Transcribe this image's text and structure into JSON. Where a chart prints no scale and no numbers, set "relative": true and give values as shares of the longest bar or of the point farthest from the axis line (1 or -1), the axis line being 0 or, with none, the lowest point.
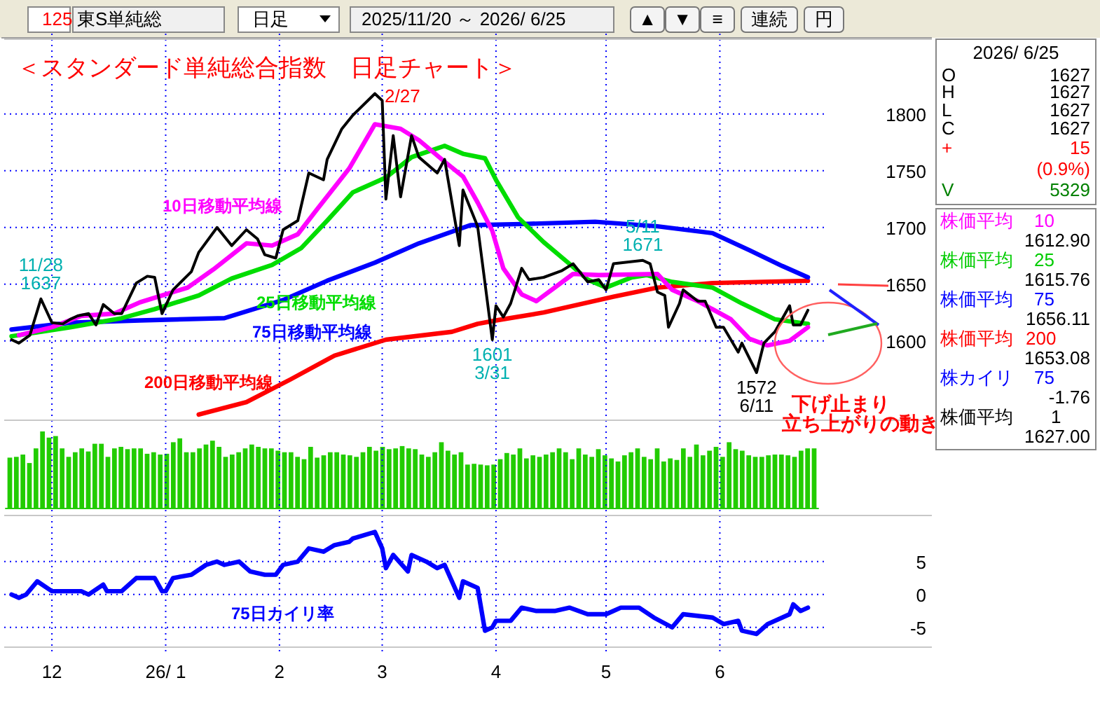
{
  "chart_data": [
    {
      "type": "line",
      "title": "＜スタンダード単純総合指数　日足チャート＞",
      "xlim": [
        "2025-11-18",
        "2026-07-28"
      ],
      "xticks": [
        "2025-12-01",
        "2026-01-01",
        "2026-02-01",
        "2026-03-01",
        "2026-04-01",
        "2026-05-01",
        "2026-06-01"
      ],
      "ylim": [
        1530,
        1866
      ],
      "yticks": [
        1600,
        1650,
        1700,
        1750,
        1800
      ],
      "grid": true,
      "tick_labels": "y",
      "series": [
        {
          "color": "#000000",
          "x": [
            "2025-11-20",
            "2025-11-22",
            "2025-11-25",
            "2025-11-28",
            "2025-12-01",
            "2025-12-04",
            "2025-12-06",
            "2025-12-08",
            "2025-12-11",
            "2025-12-13",
            "2025-12-15",
            "2025-12-18",
            "2025-12-20",
            "2025-12-24",
            "2025-12-27",
            "2025-12-29",
            "2025-12-31",
            "2026-01-03",
            "2026-01-08",
            "2026-01-10",
            "2026-01-15",
            "2026-01-19",
            "2026-01-23",
            "2026-01-26",
            "2026-01-28",
            "2026-01-31",
            "2026-02-02",
            "2026-02-06",
            "2026-02-09",
            "2026-02-13",
            "2026-02-14",
            "2026-02-18",
            "2026-02-21",
            "2026-02-27",
            "2026-03-01",
            "2026-03-02",
            "2026-03-04",
            "2026-03-06",
            "2026-03-09",
            "2026-03-11",
            "2026-03-16",
            "2026-03-18",
            "2026-03-22",
            "2026-03-23",
            "2026-03-27",
            "2026-03-31",
            "2026-04-01",
            "2026-04-03",
            "2026-04-05",
            "2026-04-08",
            "2026-04-10",
            "2026-04-14",
            "2026-04-19",
            "2026-04-22",
            "2026-04-26",
            "2026-04-29",
            "2026-05-01",
            "2026-05-03",
            "2026-05-11",
            "2026-05-13",
            "2026-05-15",
            "2026-05-17",
            "2026-05-18",
            "2026-05-21",
            "2026-05-22",
            "2026-05-26",
            "2026-05-28",
            "2026-05-31",
            "2026-06-02",
            "2026-06-06",
            "2026-06-07",
            "2026-06-11",
            "2026-06-13",
            "2026-06-16",
            "2026-06-20",
            "2026-06-21",
            "2026-06-23",
            "2026-06-25"
          ],
          "values": [
            1601,
            1598,
            1605,
            1637,
            1616,
            1615,
            1619,
            1622,
            1624,
            1614,
            1632,
            1624,
            1624,
            1651,
            1657,
            1656,
            1624,
            1645,
            1661,
            1678,
            1700,
            1684,
            1698,
            1690,
            1676,
            1673,
            1698,
            1706,
            1748,
            1742,
            1760,
            1787,
            1799,
            1818,
            1812,
            1725,
            1781,
            1727,
            1781,
            1762,
            1748,
            1760,
            1684,
            1733,
            1701,
            1601,
            1631,
            1621,
            1633,
            1664,
            1654,
            1656,
            1662,
            1668,
            1652,
            1654,
            1645,
            1668,
            1671,
            1668,
            1643,
            1640,
            1612,
            1633,
            1645,
            1635,
            1635,
            1612,
            1612,
            1590,
            1598,
            1572,
            1598,
            1608,
            1631,
            1614,
            1614,
            1627
          ]
        },
        {
          "name": "10日移動平均線",
          "color": "#ff00ff",
          "x": [
            "2025-11-22",
            "2025-12-01",
            "2025-12-09",
            "2025-12-18",
            "2025-12-25",
            "2025-12-31",
            "2026-01-07",
            "2026-01-14",
            "2026-01-23",
            "2026-01-30",
            "2026-02-06",
            "2026-02-11",
            "2026-02-20",
            "2026-02-27",
            "2026-03-06",
            "2026-03-11",
            "2026-03-18",
            "2026-03-23",
            "2026-03-27",
            "2026-03-31",
            "2026-04-03",
            "2026-04-08",
            "2026-04-12",
            "2026-04-17",
            "2026-04-22",
            "2026-04-29",
            "2026-05-15",
            "2026-05-19",
            "2026-05-26",
            "2026-06-04",
            "2026-06-09",
            "2026-06-14",
            "2026-06-20",
            "2026-06-25"
          ],
          "values": [
            1605,
            1612,
            1622,
            1624,
            1634,
            1640,
            1647,
            1663,
            1686,
            1684,
            1694,
            1715,
            1752,
            1791,
            1787,
            1777,
            1758,
            1745,
            1722,
            1697,
            1664,
            1641,
            1635,
            1647,
            1659,
            1658,
            1659,
            1645,
            1635,
            1619,
            1602,
            1596,
            1600,
            1612
          ]
        },
        {
          "name": "25日移動平均線",
          "color": "#00dd00",
          "x": [
            "2025-11-20",
            "2025-12-06",
            "2025-12-20",
            "2025-12-29",
            "2026-01-10",
            "2026-01-19",
            "2026-01-30",
            "2026-02-07",
            "2026-02-14",
            "2026-02-21",
            "2026-03-02",
            "2026-03-09",
            "2026-03-18",
            "2026-03-23",
            "2026-03-29",
            "2026-04-01",
            "2026-04-07",
            "2026-04-14",
            "2026-04-21",
            "2026-04-26",
            "2026-05-01",
            "2026-05-08",
            "2026-05-12",
            "2026-05-19",
            "2026-05-30",
            "2026-06-07",
            "2026-06-16",
            "2026-06-25"
          ],
          "values": [
            1604,
            1612,
            1620,
            1628,
            1640,
            1655,
            1667,
            1682,
            1706,
            1731,
            1744,
            1762,
            1772,
            1765,
            1761,
            1742,
            1709,
            1687,
            1668,
            1654,
            1647,
            1656,
            1658,
            1652,
            1647,
            1633,
            1619,
            1615
          ]
        },
        {
          "name": "75日移動平均線",
          "color": "#0000ff",
          "x": [
            "2025-11-20",
            "2025-12-06",
            "2025-12-25",
            "2026-01-17",
            "2026-02-02",
            "2026-02-14",
            "2026-02-27",
            "2026-03-11",
            "2026-03-25",
            "2026-04-08",
            "2026-04-28",
            "2026-05-15",
            "2026-05-30",
            "2026-06-09",
            "2026-06-18",
            "2026-06-25"
          ],
          "values": [
            1610,
            1616,
            1618,
            1620,
            1636,
            1653,
            1669,
            1686,
            1702,
            1703,
            1705,
            1701,
            1695,
            1680,
            1666,
            1656
          ]
        },
        {
          "name": "200日移動平均線",
          "color": "#ff0000",
          "x": [
            "2026-01-10",
            "2026-01-23",
            "2026-02-04",
            "2026-02-16",
            "2026-03-02",
            "2026-03-20",
            "2026-03-27",
            "2026-04-01",
            "2026-04-14",
            "2026-05-03",
            "2026-05-15",
            "2026-05-30",
            "2026-06-25"
          ],
          "values": [
            1535,
            1546,
            1566,
            1587,
            1601,
            1608,
            1615,
            1618,
            1625,
            1639,
            1647,
            1651,
            1653
          ]
        }
      ],
      "annotations": [
        {
          "text": "11/28\n1637",
          "x": "2025-11-28",
          "y": 1637
        },
        {
          "text": "2/27",
          "x": "2026-02-27",
          "y": 1818
        },
        {
          "text": "5/11\n1671",
          "x": "2026-05-11",
          "y": 1671
        },
        {
          "text": "1601\n3/31",
          "x": "2026-03-31",
          "y": 1601
        },
        {
          "text": "1572\n6/11",
          "x": "2026-06-11",
          "y": 1572
        },
        "下げ止まり",
        "立ち上がりの動き"
      ]
    },
    {
      "type": "bar",
      "relative": true,
      "color": "#22cc00",
      "tick_labels": false,
      "categories": [
        null,
        null,
        null,
        null,
        null,
        null,
        null,
        null,
        null,
        null,
        null,
        null,
        null,
        null,
        null,
        null,
        null,
        null,
        null,
        null,
        null,
        null,
        null,
        null,
        null,
        null,
        null,
        null,
        null,
        null,
        null,
        null,
        null,
        null,
        null,
        null,
        null,
        null,
        null,
        null,
        null,
        null,
        null,
        null,
        null,
        null,
        null,
        null,
        null,
        null,
        null,
        null,
        null,
        null,
        null,
        null,
        null,
        null,
        null,
        null,
        null,
        null,
        null,
        null,
        null,
        null,
        null,
        null,
        null,
        null,
        null,
        null,
        null,
        null,
        null,
        null,
        null,
        null,
        null,
        null,
        null,
        null,
        null,
        null,
        null,
        null,
        null,
        null,
        null,
        null,
        null,
        null,
        null,
        null,
        null,
        null,
        null,
        null,
        null,
        null,
        null,
        null,
        null,
        null,
        null,
        null,
        null,
        null,
        null,
        null,
        null,
        null,
        null,
        null,
        null,
        null,
        null,
        null,
        null,
        null,
        null,
        null,
        null,
        null
      ],
      "values": [
        0.66,
        0.67,
        0.7,
        0.59,
        0.78,
        1,
        0.92,
        0.94,
        0.78,
        0.67,
        0.73,
        0.78,
        0.74,
        0.84,
        0.84,
        0.67,
        0.78,
        0.8,
        0.77,
        0.78,
        0.78,
        0.71,
        0.73,
        0.7,
        0.71,
        0.86,
        0.91,
        0.73,
        0.73,
        0.78,
        0.83,
        0.88,
        0.8,
        0.67,
        0.7,
        0.73,
        0.78,
        0.83,
        0.8,
        0.78,
        0.78,
        0.75,
        0.73,
        0.73,
        0.67,
        0.64,
        0.8,
        0.66,
        0.69,
        0.73,
        0.73,
        0.7,
        0.69,
        0.67,
        0.73,
        0.8,
        0.75,
        0.8,
        0.77,
        0.78,
        0.81,
        0.78,
        0.77,
        0.7,
        0.67,
        0.73,
        0.86,
        0.75,
        0.7,
        0.73,
        0.57,
        0.58,
        0.57,
        0.56,
        0.57,
        0.64,
        0.72,
        0.7,
        0.78,
        0.65,
        0.69,
        0.67,
        0.7,
        0.73,
        0.78,
        0.73,
        0.64,
        0.78,
        0.7,
        0.67,
        0.77,
        0.69,
        0.65,
        0.61,
        0.69,
        0.73,
        0.78,
        0.67,
        0.64,
        0.78,
        0.61,
        0.65,
        0.63,
        0.78,
        0.67,
        0.83,
        0.69,
        0.75,
        0.8,
        0.67,
        0.86,
        0.77,
        0.75,
        0.69,
        0.67,
        0.67,
        0.69,
        0.7,
        0.7,
        0.69,
        0.67,
        0.75,
        0.78,
        0.78
      ]
    },
    {
      "type": "line",
      "xlim": [
        "2025-11-18",
        "2026-07-28"
      ],
      "xticks": [
        {
          "value": "2025-12-01",
          "label": "12"
        },
        {
          "value": "2026-01-01",
          "label": "26/ 1"
        },
        {
          "value": "2026-02-01",
          "label": "2"
        },
        {
          "value": "2026-03-01",
          "label": "3"
        },
        {
          "value": "2026-04-01",
          "label": "4"
        },
        {
          "value": "2026-05-01",
          "label": "5"
        },
        {
          "value": "2026-06-01",
          "label": "6"
        }
      ],
      "ylim": [
        -8,
        12
      ],
      "yticks": [
        5,
        0,
        -5
      ],
      "grid": true,
      "series": [
        {
          "name": "75日カイリ率",
          "color": "#0000ff",
          "x": [
            "2025-11-20",
            "2025-11-22",
            "2025-11-24",
            "2025-11-27",
            "2025-12-01",
            "2025-12-04",
            "2025-12-06",
            "2025-12-09",
            "2025-12-11",
            "2025-12-15",
            "2025-12-16",
            "2025-12-20",
            "2025-12-24",
            "2025-12-29",
            "2025-12-31",
            "2026-01-01",
            "2026-01-03",
            "2026-01-08",
            "2026-01-12",
            "2026-01-15",
            "2026-01-17",
            "2026-01-21",
            "2026-01-24",
            "2026-01-28",
            "2026-01-31",
            "2026-02-02",
            "2026-02-06",
            "2026-02-09",
            "2026-02-13",
            "2026-02-16",
            "2026-02-20",
            "2026-02-21",
            "2026-02-27",
            "2026-03-01",
            "2026-03-02",
            "2026-03-04",
            "2026-03-08",
            "2026-03-09",
            "2026-03-13",
            "2026-03-16",
            "2026-03-18",
            "2026-03-22",
            "2026-03-23",
            "2026-03-27",
            "2026-03-29",
            "2026-03-31",
            "2026-04-01",
            "2026-04-05",
            "2026-04-08",
            "2026-04-12",
            "2026-04-17",
            "2026-04-21",
            "2026-04-26",
            "2026-05-01",
            "2026-05-05",
            "2026-05-10",
            "2026-05-14",
            "2026-05-19",
            "2026-05-22",
            "2026-05-30",
            "2026-06-02",
            "2026-06-06",
            "2026-06-07",
            "2026-06-11",
            "2026-06-14",
            "2026-06-20",
            "2026-06-21",
            "2026-06-23",
            "2026-06-25"
          ],
          "values": [
            0,
            -0.5,
            0,
            2,
            0.5,
            0.5,
            0.5,
            0.5,
            0,
            1.5,
            0.5,
            0.5,
            2.5,
            2.5,
            0.5,
            0.5,
            2.5,
            3,
            4.5,
            5,
            4.5,
            5,
            3.5,
            3,
            3,
            4.5,
            5,
            7,
            6.5,
            7.5,
            8,
            8.5,
            9.5,
            7,
            4,
            6,
            3.5,
            6,
            5,
            4,
            4.5,
            -0.5,
            2,
            1,
            -5.5,
            -5,
            -4,
            -4,
            -2,
            -2.5,
            -2.5,
            -2,
            -3,
            -3,
            -2,
            -2,
            -3.5,
            -5,
            -3,
            -3.5,
            -4.5,
            -4,
            -5.5,
            -6,
            -4.5,
            -3,
            -1.5,
            -2.5,
            -2
          ]
        }
      ]
    },
    {
      "type": "other",
      "annotations": [
        "125",
        "東S単純総",
        "日足",
        "2025/11/20 ～ 2026/ 6/25",
        "▲",
        "▼",
        "≡",
        "連続",
        "円",
        "2026/ 6/25",
        "O",
        "1627",
        "H",
        "1627",
        "L",
        "1627",
        "C",
        "1627",
        "+",
        "15",
        "(0.9%)",
        "V",
        "5329",
        "株価平均",
        "10",
        "1612.90",
        "株価平均",
        "25",
        "1615.76",
        "株価平均",
        "75",
        "1656.11",
        "株価平均",
        "200",
        "1653.08",
        "株カイリ",
        "75",
        "-1.76",
        "株価平均",
        "1",
        "1627.00"
      ]
    }
  ]
}
